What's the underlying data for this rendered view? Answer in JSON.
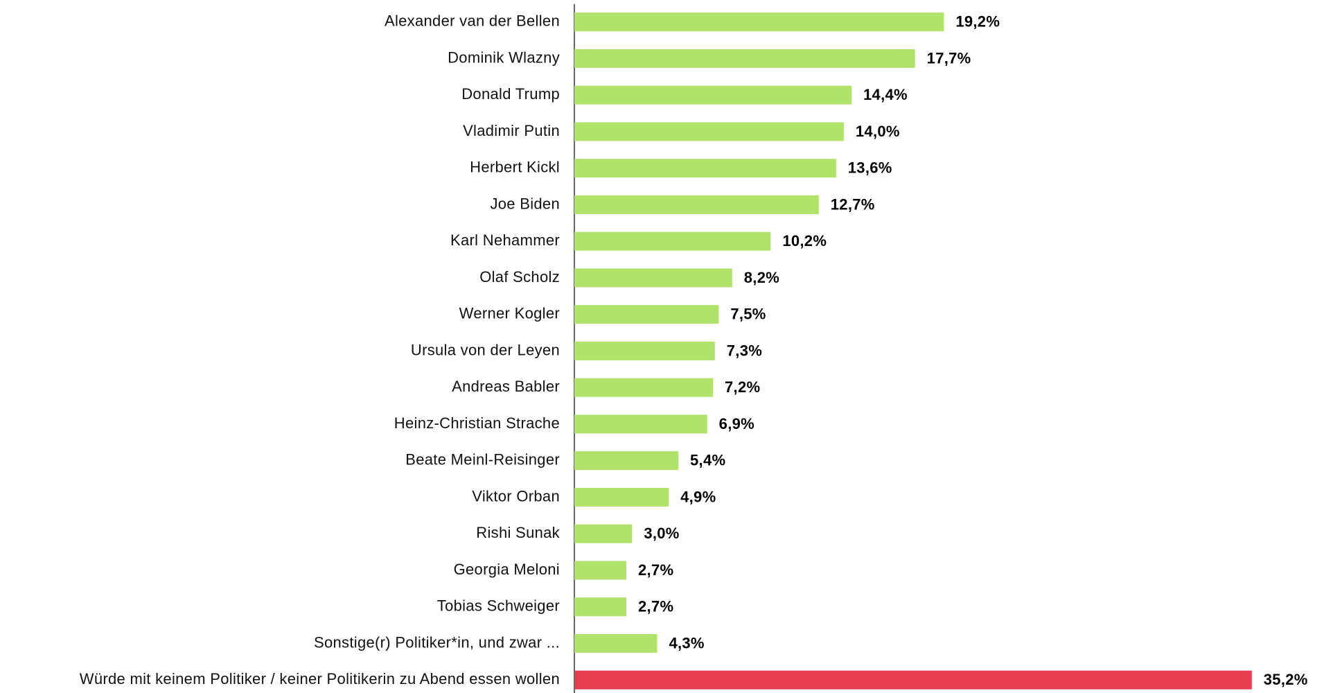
{
  "chart_data": {
    "type": "hbar",
    "categories": [
      "Alexander van der Bellen",
      "Dominik Wlazny",
      "Donald Trump",
      "Vladimir Putin",
      "Herbert Kickl",
      "Joe Biden",
      "Karl Nehammer",
      "Olaf Scholz",
      "Werner Kogler",
      "Ursula von der Leyen",
      "Andreas Babler",
      "Heinz-Christian Strache",
      "Beate Meinl-Reisinger",
      "Viktor Orban",
      "Rishi Sunak",
      "Georgia Meloni",
      "Tobias Schweiger",
      "Sonstige(r) Politiker*in, und zwar ...",
      "Würde mit keinem Politiker / keiner Politikerin zu Abend essen wollen"
    ],
    "values": [
      19.2,
      17.7,
      14.4,
      14.0,
      13.6,
      12.7,
      10.2,
      8.2,
      7.5,
      7.3,
      7.2,
      6.9,
      5.4,
      4.9,
      3.0,
      2.7,
      2.7,
      4.3,
      35.2
    ],
    "value_labels": [
      "19,2%",
      "17,7%",
      "14,4%",
      "14,0%",
      "13,6%",
      "12,7%",
      "10,2%",
      "8,2%",
      "7,5%",
      "7,3%",
      "7,2%",
      "6,9%",
      "5,4%",
      "4,9%",
      "3,0%",
      "2,7%",
      "2,7%",
      "4,3%",
      "35,2%"
    ],
    "colors": [
      "#b0e36a",
      "#b0e36a",
      "#b0e36a",
      "#b0e36a",
      "#b0e36a",
      "#b0e36a",
      "#b0e36a",
      "#b0e36a",
      "#b0e36a",
      "#b0e36a",
      "#b0e36a",
      "#b0e36a",
      "#b0e36a",
      "#b0e36a",
      "#b0e36a",
      "#b0e36a",
      "#b0e36a",
      "#b0e36a",
      "#e63e4f"
    ],
    "xlim": [
      0,
      36
    ]
  }
}
